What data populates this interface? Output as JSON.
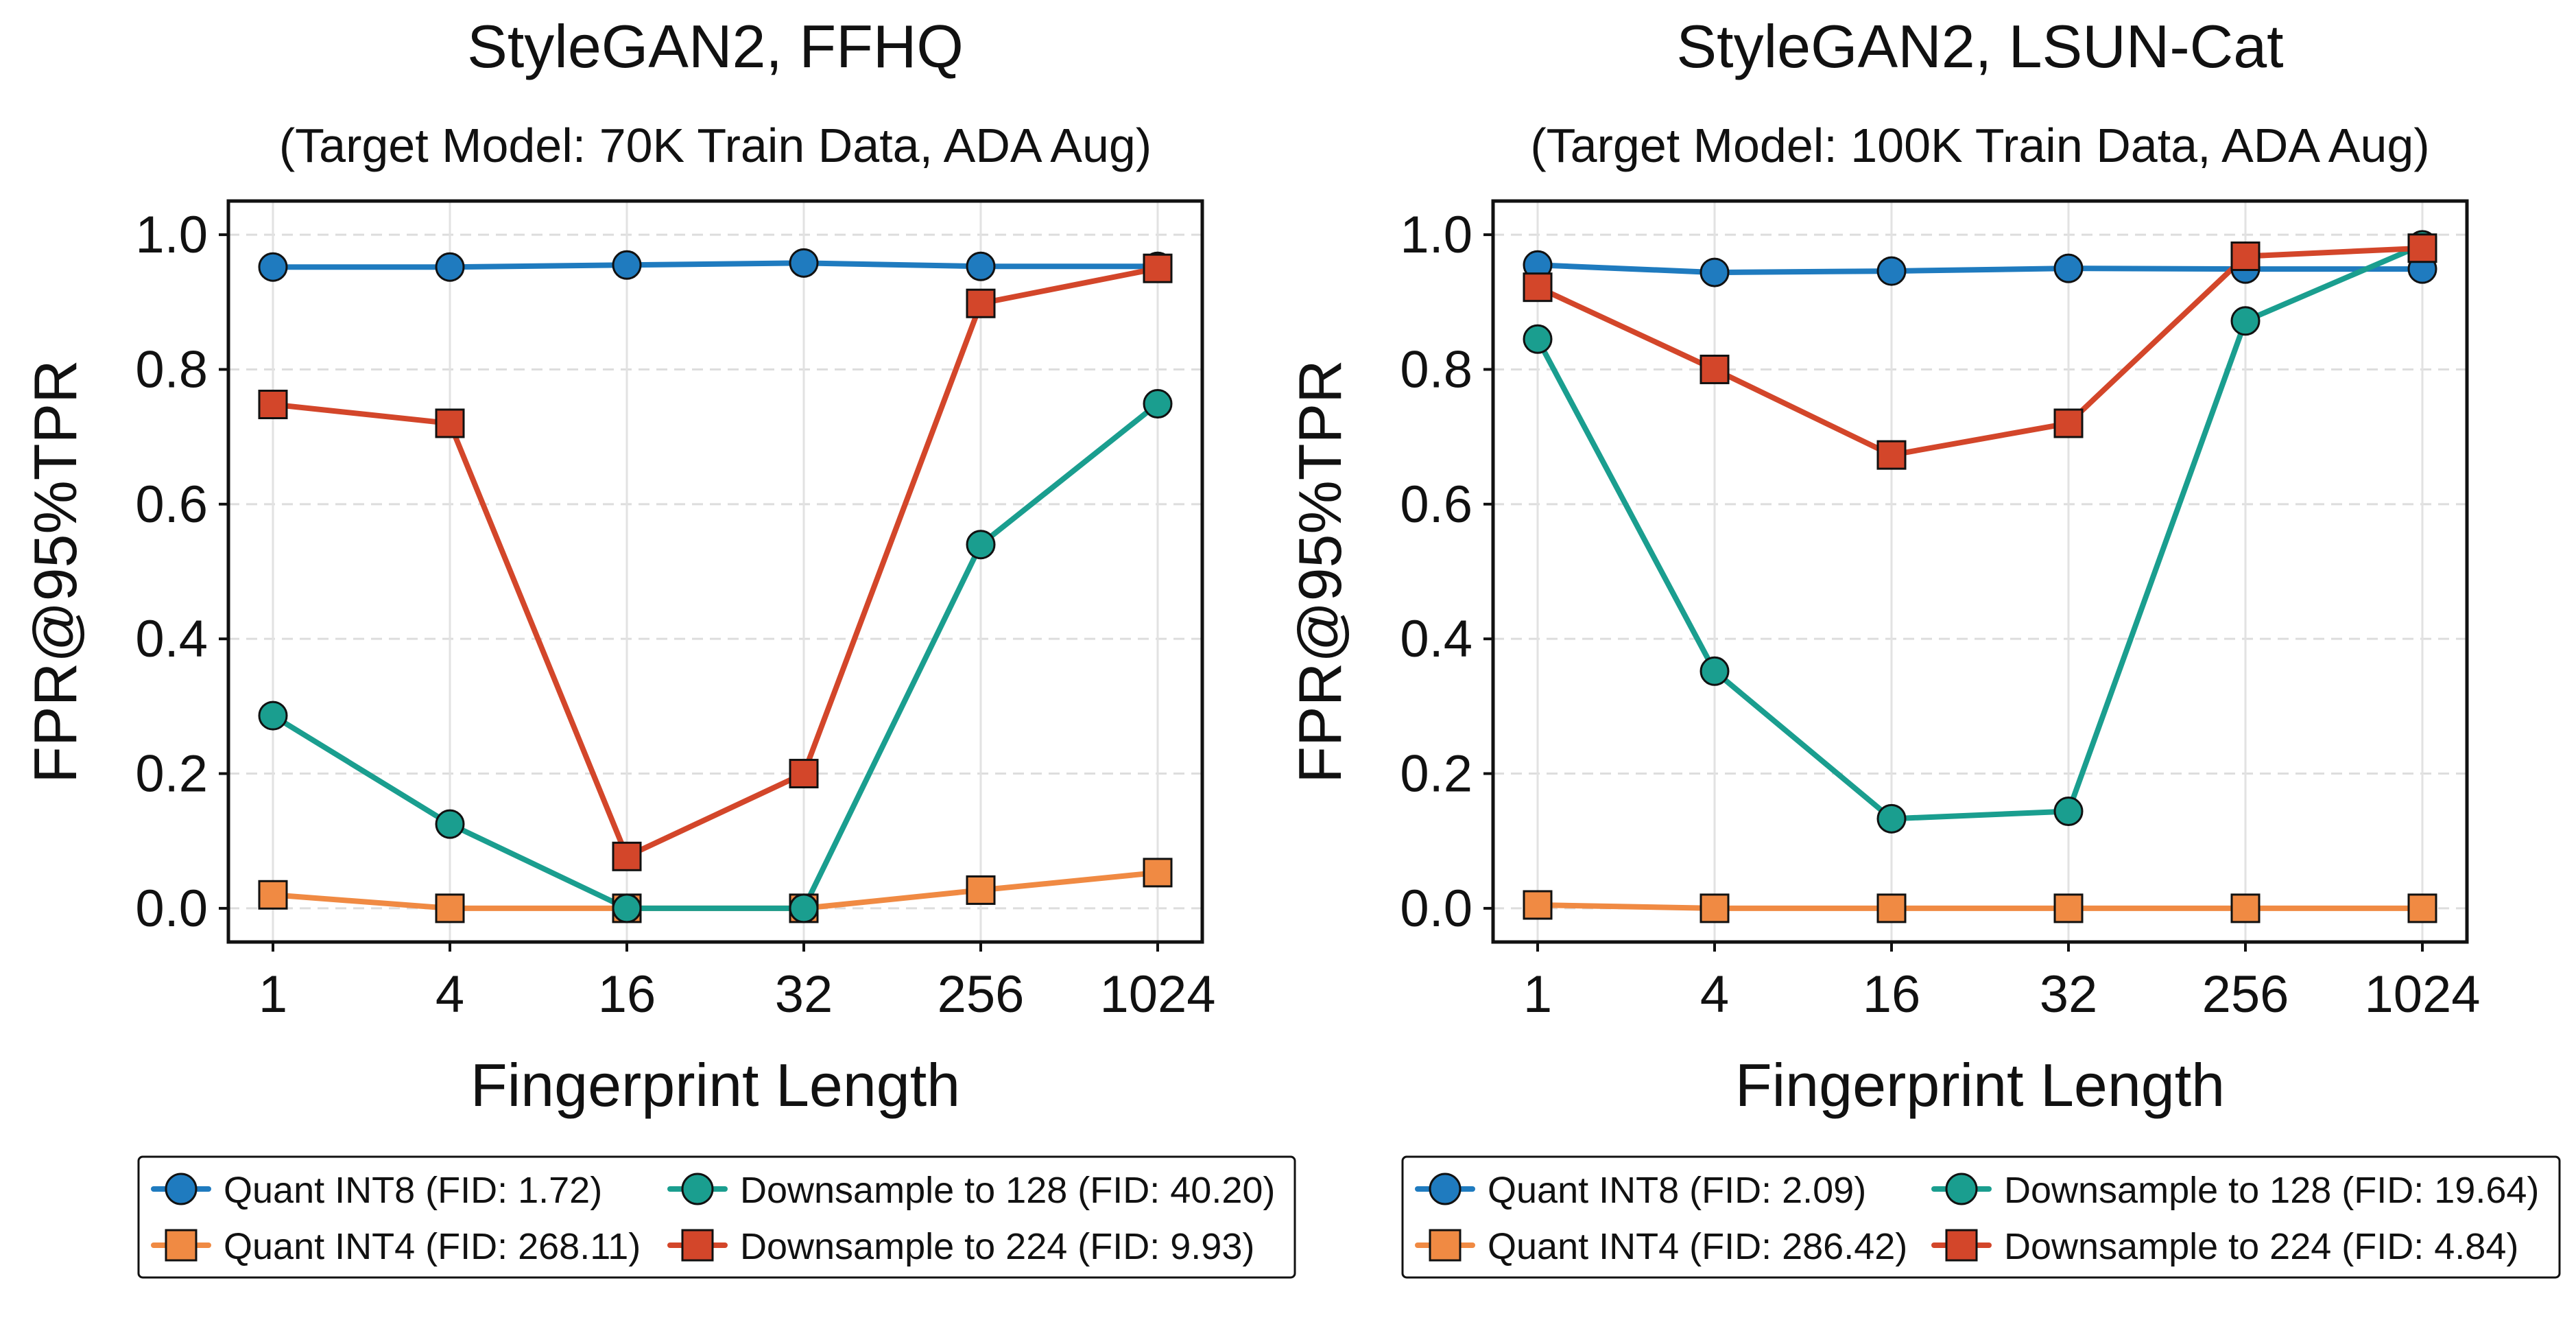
{
  "chart_data": [
    {
      "type": "line",
      "title": "StyleGAN2, FFHQ",
      "subtitle": "(Target Model: 70K Train Data, ADA Aug)",
      "xlabel": "Fingerprint Length",
      "ylabel": "FPR@95%TPR",
      "x": [
        "1",
        "4",
        "16",
        "32",
        "256",
        "1024"
      ],
      "xscale": "categorical",
      "ylim": [
        -0.05,
        1.05
      ],
      "yticks": [
        "0.0",
        "0.2",
        "0.4",
        "0.6",
        "0.8",
        "1.0"
      ],
      "grid": true,
      "legend_position": "below",
      "legend_columns": 2,
      "series": [
        {
          "name": "Quant INT8 (FID: 1.72)",
          "color": "#1f7bbf",
          "marker": "circle",
          "values": [
            0.952,
            0.952,
            0.955,
            0.958,
            0.953,
            0.953
          ]
        },
        {
          "name": "Quant INT4 (FID: 268.11)",
          "color": "#f08a43",
          "marker": "square",
          "values": [
            0.02,
            0.0,
            0.0,
            0.0,
            0.027,
            0.053
          ]
        },
        {
          "name": "Downsample to 128 (FID: 40.20)",
          "color": "#1a9e8f",
          "marker": "circle",
          "values": [
            0.286,
            0.125,
            0.0,
            0.0,
            0.54,
            0.749
          ]
        },
        {
          "name": "Downsample to 224 (FID: 9.93)",
          "color": "#d3462a",
          "marker": "square",
          "values": [
            0.748,
            0.72,
            0.077,
            0.2,
            0.898,
            0.95
          ]
        }
      ]
    },
    {
      "type": "line",
      "title": "StyleGAN2, LSUN-Cat",
      "subtitle": "(Target Model: 100K Train Data, ADA Aug)",
      "xlabel": "Fingerprint Length",
      "ylabel": "FPR@95%TPR",
      "x": [
        "1",
        "4",
        "16",
        "32",
        "256",
        "1024"
      ],
      "xscale": "categorical",
      "ylim": [
        -0.05,
        1.05
      ],
      "yticks": [
        "0.0",
        "0.2",
        "0.4",
        "0.6",
        "0.8",
        "1.0"
      ],
      "grid": true,
      "legend_position": "below",
      "legend_columns": 2,
      "series": [
        {
          "name": "Quant INT8 (FID: 2.09)",
          "color": "#1f7bbf",
          "marker": "circle",
          "values": [
            0.955,
            0.944,
            0.946,
            0.95,
            0.949,
            0.949
          ]
        },
        {
          "name": "Quant INT4 (FID: 286.42)",
          "color": "#f08a43",
          "marker": "square",
          "values": [
            0.005,
            0.0,
            0.0,
            0.0,
            0.0,
            0.0
          ]
        },
        {
          "name": "Downsample to 128 (FID: 19.64)",
          "color": "#1a9e8f",
          "marker": "circle",
          "values": [
            0.845,
            0.352,
            0.133,
            0.144,
            0.872,
            0.985
          ]
        },
        {
          "name": "Downsample to 224 (FID: 4.84)",
          "color": "#d3462a",
          "marker": "square",
          "values": [
            0.922,
            0.8,
            0.673,
            0.72,
            0.968,
            0.98
          ]
        }
      ]
    }
  ]
}
